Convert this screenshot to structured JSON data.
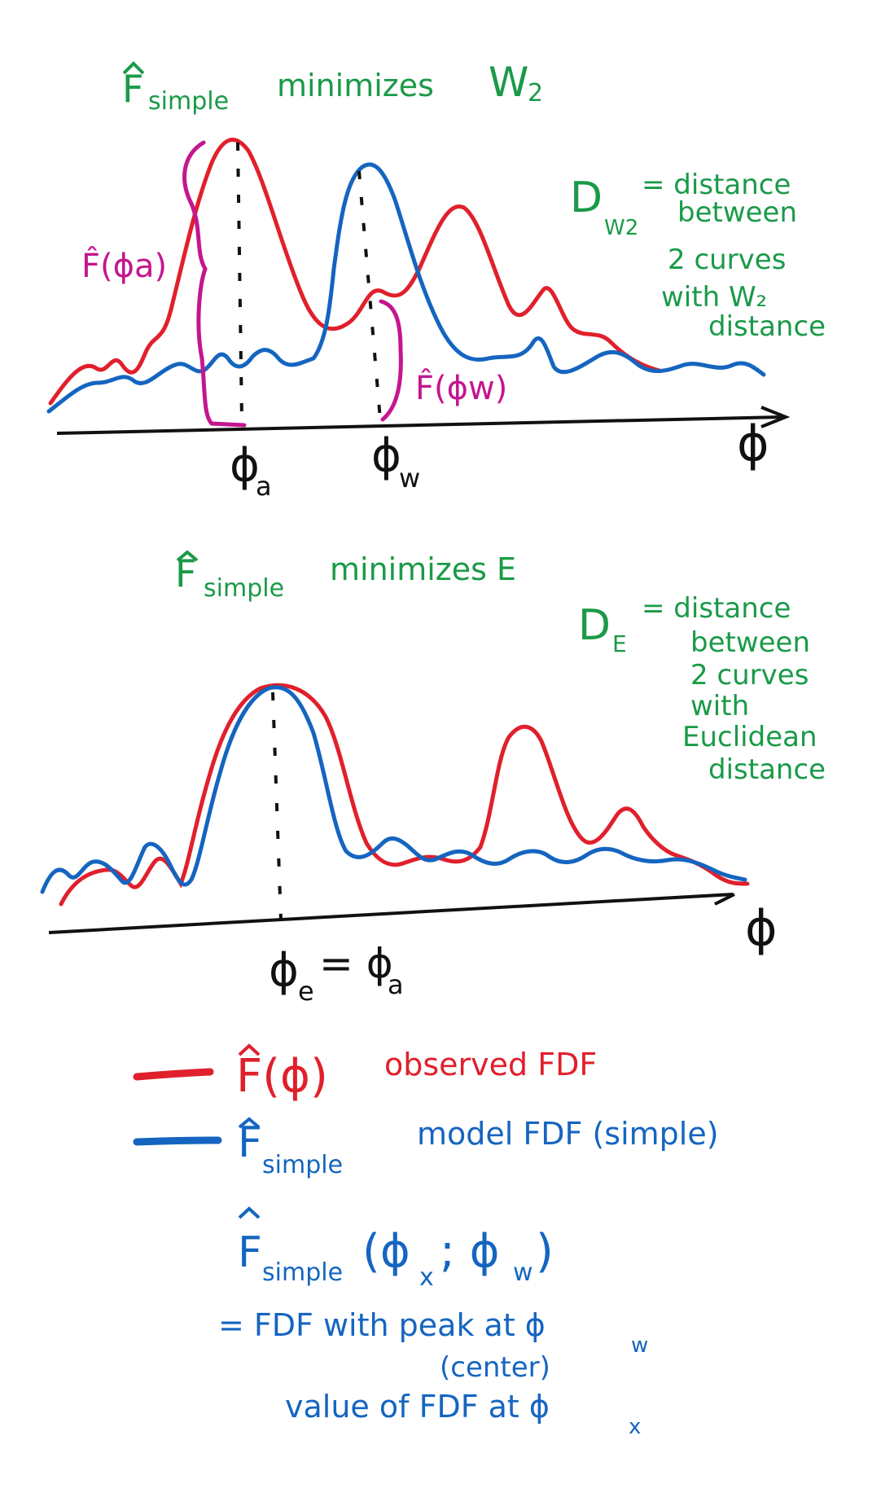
{
  "panel1": {
    "title": "F̂simple minimizes W2",
    "title_parts": {
      "f": "F",
      "sub": "simple",
      "rest": "minimizes",
      "w": "W",
      "w_sub": "2"
    },
    "note_lines": [
      "D   = distance",
      "between",
      "2 curves",
      "with W2",
      "distance"
    ],
    "note_d": "D",
    "note_d_sub": "W2",
    "note_l1": "= distance",
    "note_l2": "between",
    "note_l3": "2 curves",
    "note_l4": "with W₂",
    "note_l5": "distance",
    "label_fa": "F̂(ϕa)",
    "label_fw": "F̂(ϕw)",
    "tick_a": "ϕa",
    "tick_a_main": "ϕ",
    "tick_a_sub": "a",
    "tick_w_main": "ϕ",
    "tick_w_sub": "w",
    "axis_label": "ϕ"
  },
  "panel2": {
    "title_f": "F",
    "title_sub": "simple",
    "title_rest": "minimizes  E",
    "note_d": "D",
    "note_d_sub": "E",
    "note_l1": "= distance",
    "note_l2": "between",
    "note_l3": "2 curves",
    "note_l4": "with",
    "note_l5": "Euclidean",
    "note_l6": "distance",
    "tick_e_main": "ϕ",
    "tick_e_sub": "e",
    "tick_eq": "= ϕ",
    "tick_a_sub": "a",
    "axis_label": "ϕ"
  },
  "legend": {
    "red_label_f": "F(ϕ)",
    "red_label_rest": "observed FDF",
    "blue_label_f": "F",
    "blue_label_sub": "simple",
    "blue_label_rest": "model FDF (simple)",
    "func_f": "F",
    "func_sub": "simple",
    "func_args": "(ϕ",
    "func_x": "x",
    "func_sep": "; ϕ",
    "func_w": "w",
    "func_close": ")",
    "def_l1": "= FDF with peak at ϕ",
    "def_l1_sub": "w",
    "def_l2": "(center)",
    "def_l3": "value of FDF at ϕ",
    "def_l3_sub": "x"
  },
  "colors": {
    "observed": "#e0202c",
    "model": "#1565c0",
    "annotation": "#c4168f",
    "title": "#1a9a48",
    "axis": "#111111"
  }
}
